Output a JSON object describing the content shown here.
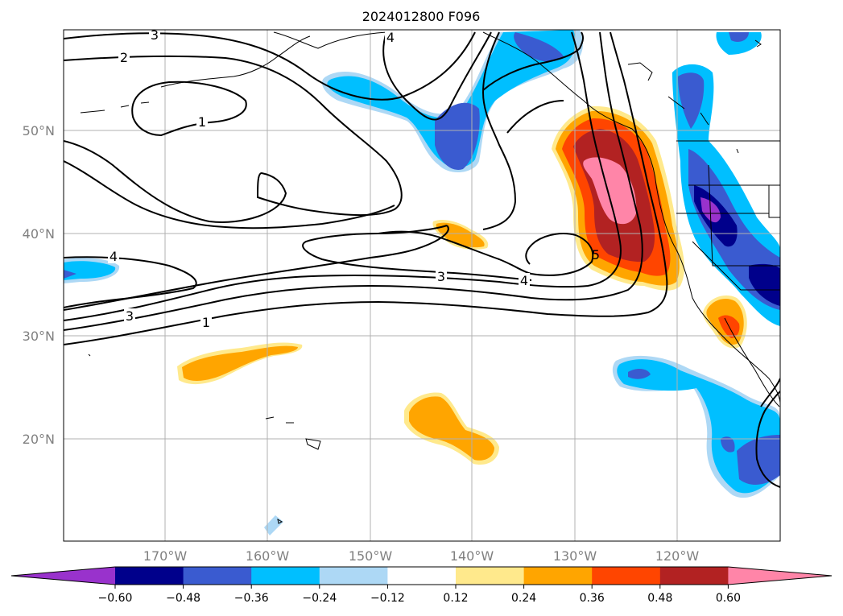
{
  "title": "2024012800 F096",
  "lat_labels": [
    "50°N",
    "40°N",
    "30°N",
    "20°N"
  ],
  "lon_labels": [
    "170°W",
    "160°W",
    "150°W",
    "140°W",
    "130°W",
    "120°W"
  ],
  "colorbar": {
    "ticks": [
      "−0.60",
      "−0.48",
      "−0.36",
      "−0.24",
      "−0.12",
      "0.12",
      "0.24",
      "0.36",
      "0.48",
      "0.60"
    ],
    "colors": [
      "#9932cc",
      "#00008b",
      "#3a5bd0",
      "#00bfff",
      "#add8f5",
      "#ffffff",
      "#ffe98c",
      "#ffa500",
      "#ff4500",
      "#b22222",
      "#ff85a8"
    ]
  },
  "contour_labels": [
    "3",
    "2",
    "1",
    "4",
    "4",
    "3",
    "1",
    "3",
    "4",
    "5"
  ]
}
